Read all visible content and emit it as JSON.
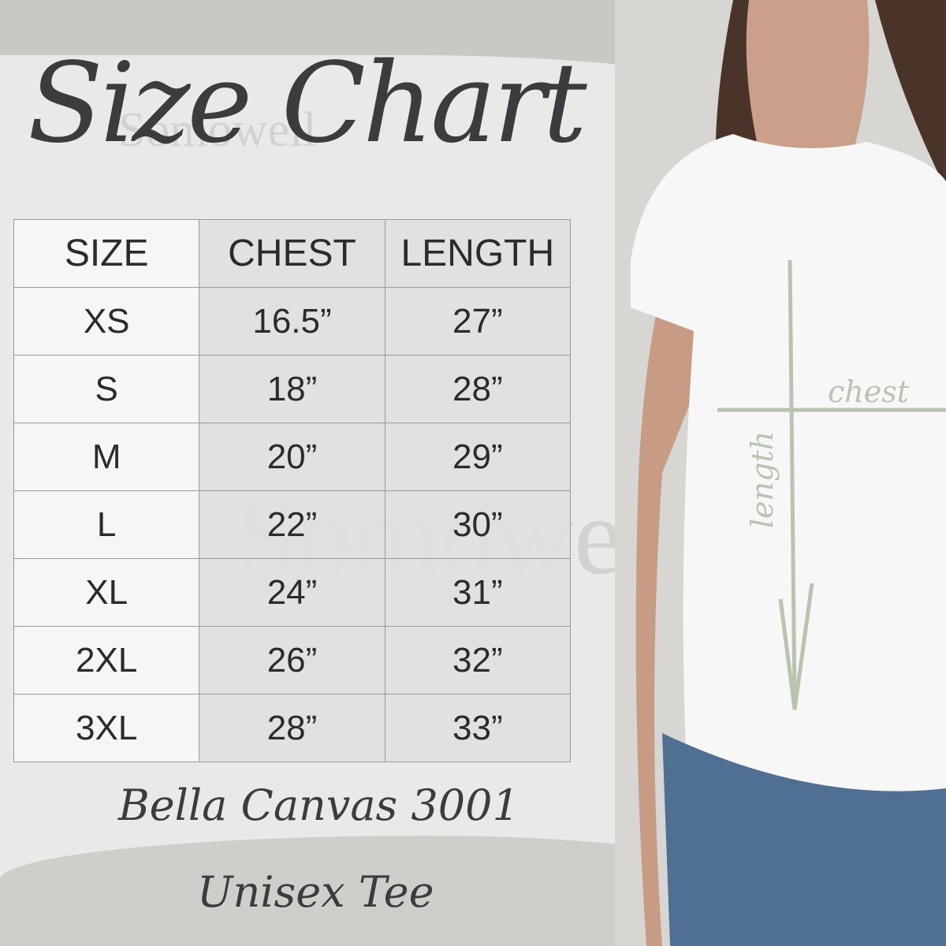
{
  "title": "Size Chart",
  "watermark": "Somowell",
  "table": {
    "headers": [
      "SIZE",
      "CHEST",
      "LENGTH"
    ],
    "rows": [
      [
        "XS",
        "16.5”",
        "27”"
      ],
      [
        "S",
        "18”",
        "28”"
      ],
      [
        "M",
        "20”",
        "29”"
      ],
      [
        "L",
        "22”",
        "30”"
      ],
      [
        "XL",
        "24”",
        "31”"
      ],
      [
        "2XL",
        "26”",
        "32”"
      ],
      [
        "3XL",
        "28”",
        "33”"
      ]
    ]
  },
  "product_line1": "Bella Canvas 3001",
  "product_line2": "Unisex Tee",
  "photo_labels": {
    "chest": "chest",
    "length": "length"
  },
  "colors": {
    "background": "#c9c8c4",
    "panel": "#e9e9e7",
    "text": "#2b2b2b",
    "measure_lines": "#b9c4af"
  }
}
